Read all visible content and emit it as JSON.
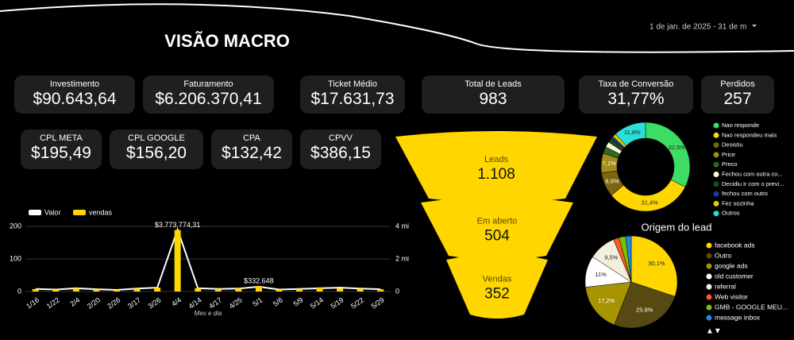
{
  "header": {
    "title": "VISÃO MACRO",
    "date_range": "1 de jan. de 2025 - 31 de m"
  },
  "kpis": [
    {
      "label": "Investimento",
      "value": "$90.643,64"
    },
    {
      "label": "Faturamento",
      "value": "$6.206.370,41"
    },
    {
      "label": "Ticket Médio",
      "value": "$17.631,73"
    },
    {
      "label": "Total de Leads",
      "value": "983"
    },
    {
      "label": "Taxa de Conversão",
      "value": "31,77%"
    },
    {
      "label": "Perdidos",
      "value": "257"
    },
    {
      "label": "CPL META",
      "value": "$195,49"
    },
    {
      "label": "CPL GOOGLE",
      "value": "$156,20"
    },
    {
      "label": "CPA",
      "value": "$132,42"
    },
    {
      "label": "CPVV",
      "value": "$386,15"
    }
  ],
  "chart_data": [
    {
      "type": "combo",
      "categories": [
        "1/16",
        "1/22",
        "2/4",
        "2/20",
        "2/26",
        "3/17",
        "3/26",
        "4/4",
        "4/14",
        "4/17",
        "4/25",
        "5/1",
        "5/6",
        "5/9",
        "5/14",
        "5/19",
        "5/22",
        "5/29"
      ],
      "series": [
        {
          "name": "Valor",
          "type": "line",
          "color": "#ffffff",
          "values": [
            8,
            6,
            10,
            7,
            5,
            9,
            12,
            190,
            10,
            8,
            9,
            15,
            6,
            8,
            10,
            12,
            9,
            7
          ]
        },
        {
          "name": "vendas",
          "type": "bar",
          "color": "#ffd600",
          "axis": "y2",
          "values": [
            150000,
            120000,
            200000,
            140000,
            100000,
            180000,
            240000,
            3773774.31,
            200000,
            160000,
            190000,
            332648,
            120000,
            160000,
            255000,
            193000,
            170000,
            140000
          ],
          "value_labels": [
            null,
            null,
            null,
            null,
            null,
            null,
            null,
            "$3.773.774,31",
            null,
            null,
            null,
            "$332.648",
            null,
            null,
            null,
            null,
            null,
            null
          ]
        }
      ],
      "ylim": [
        0,
        200
      ],
      "yticks": [
        0,
        100,
        200
      ],
      "y2lim": [
        0,
        4000000
      ],
      "y2ticks": [
        0,
        {
          "value": 2000000,
          "label": "2 mi"
        },
        {
          "value": 4000000,
          "label": "4 mi"
        }
      ],
      "xlabel": "Mes e dia",
      "legend": "top-left"
    },
    {
      "type": "funnel",
      "categories": [
        "Leads",
        "Em aberto",
        "Vendas"
      ],
      "values": [
        1108,
        504,
        352
      ],
      "value_labels": [
        "1.108",
        "504",
        "352"
      ],
      "color": "#ffd600"
    },
    {
      "type": "donut",
      "categories": [
        "Nao responde",
        "Nao respondeu mais",
        "Desistiu",
        "Price",
        "Preco",
        "Fechou com outra co...",
        "Decidiu ir com o previ...",
        "fechou com outro",
        "Fez sozinha",
        "Outros"
      ],
      "values": [
        32.5,
        31.4,
        8.9,
        7.1,
        2.5,
        2,
        1.5,
        1,
        1.3,
        11.8
      ],
      "value_labels": [
        "32,5%",
        "31,4%",
        "8,9%",
        "7,1%",
        null,
        null,
        null,
        null,
        null,
        "11,8%"
      ],
      "colors": [
        "#3ddc64",
        "#ffd600",
        "#7a6510",
        "#a38c1a",
        "#2f6a24",
        "#fff7d6",
        "#1f4d1a",
        "#1a3a8a",
        "#e6c700",
        "#27e0d6"
      ]
    },
    {
      "type": "pie",
      "title": "Origem do lead",
      "categories": [
        "facebook ads",
        "Outro",
        "google ads",
        "old customer",
        "referral",
        "Web visitor",
        "GMB - GOOGLE MEU...",
        "message inbox"
      ],
      "values": [
        30.1,
        25.9,
        17.2,
        11,
        9.5,
        2,
        2.3,
        2
      ],
      "value_labels": [
        "30,1%",
        "25,9%",
        "17,2%",
        "11%",
        "9,5%",
        null,
        null,
        null
      ],
      "colors": [
        "#ffd600",
        "#564a12",
        "#a89400",
        "#ffffff",
        "#f4efdc",
        "#ff5722",
        "#7cc000",
        "#1e88e5"
      ],
      "legend_pager": "▲▼"
    }
  ]
}
